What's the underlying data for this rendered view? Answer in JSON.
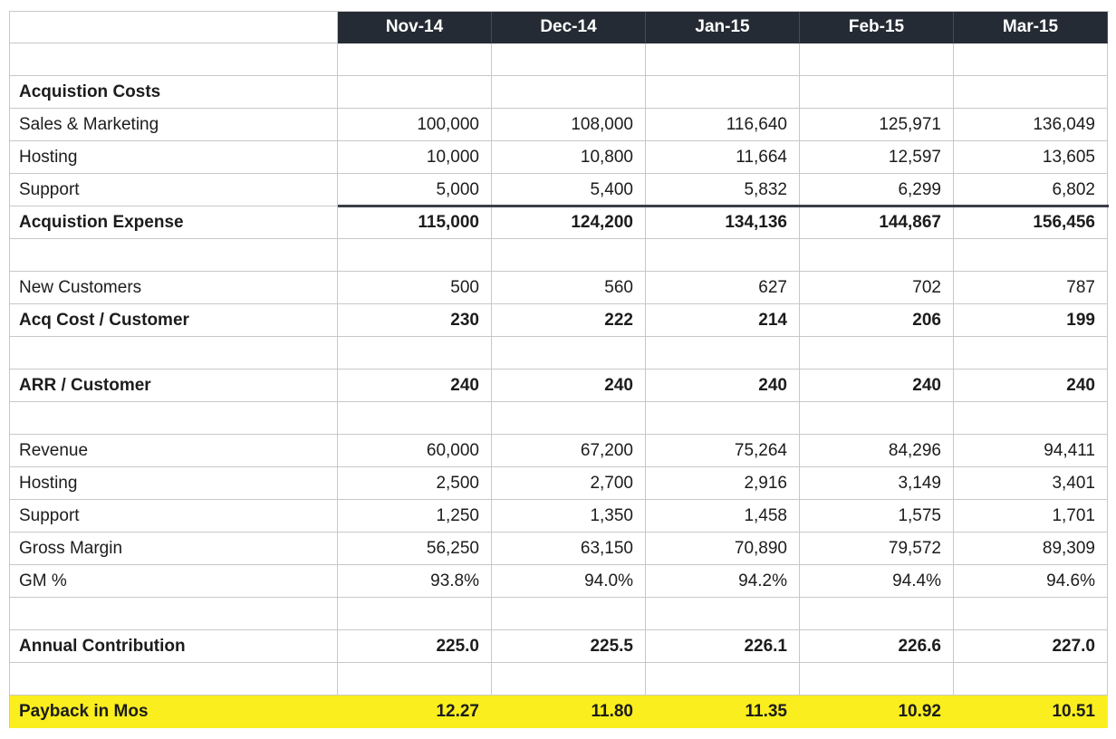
{
  "colors": {
    "header_bg": "#252B34",
    "header_text": "#FFFFFF",
    "header_divider": "#454B57",
    "gridline": "#C8C8C8",
    "text": "#1C1C1C",
    "highlight_yellow": "#FAEE1E",
    "sum_border": "#3A3F47",
    "flag_green": "#3F7D2B"
  },
  "table": {
    "corner_label": "",
    "columns": [
      "Nov-14",
      "Dec-14",
      "Jan-15",
      "Feb-15",
      "Mar-15"
    ],
    "rows": [
      {
        "label": "",
        "values": [
          "",
          "",
          "",
          "",
          ""
        ]
      },
      {
        "label": "Acquistion Costs",
        "bold": true,
        "values": [
          "",
          "",
          "",
          "",
          ""
        ]
      },
      {
        "label": "Sales & Marketing",
        "values": [
          "100,000",
          "108,000",
          "116,640",
          "125,971",
          "136,049"
        ]
      },
      {
        "label": "Hosting",
        "values": [
          "10,000",
          "10,800",
          "11,664",
          "12,597",
          "13,605"
        ]
      },
      {
        "label": "Support",
        "values": [
          "5,000",
          "5,400",
          "5,832",
          "6,299",
          "6,802"
        ]
      },
      {
        "label": "Acquistion Expense",
        "bold": true,
        "sum_border": true,
        "flag": true,
        "values": [
          "115,000",
          "124,200",
          "134,136",
          "144,867",
          "156,456"
        ]
      },
      {
        "label": "",
        "values": [
          "",
          "",
          "",
          "",
          ""
        ]
      },
      {
        "label": "New Customers",
        "values": [
          "500",
          "560",
          "627",
          "702",
          "787"
        ]
      },
      {
        "label": "Acq Cost / Customer",
        "bold": true,
        "values": [
          "230",
          "222",
          "214",
          "206",
          "199"
        ]
      },
      {
        "label": "",
        "values": [
          "",
          "",
          "",
          "",
          ""
        ]
      },
      {
        "label": "ARR / Customer",
        "bold": true,
        "values": [
          "240",
          "240",
          "240",
          "240",
          "240"
        ]
      },
      {
        "label": "",
        "values": [
          "",
          "",
          "",
          "",
          ""
        ]
      },
      {
        "label": "Revenue",
        "values": [
          "60,000",
          "67,200",
          "75,264",
          "84,296",
          "94,411"
        ]
      },
      {
        "label": "Hosting",
        "values": [
          "2,500",
          "2,700",
          "2,916",
          "3,149",
          "3,401"
        ]
      },
      {
        "label": "Support",
        "values": [
          "1,250",
          "1,350",
          "1,458",
          "1,575",
          "1,701"
        ]
      },
      {
        "label": "Gross Margin",
        "values": [
          "56,250",
          "63,150",
          "70,890",
          "79,572",
          "89,309"
        ]
      },
      {
        "label": "GM %",
        "values": [
          "93.8%",
          "94.0%",
          "94.2%",
          "94.4%",
          "94.6%"
        ]
      },
      {
        "label": "",
        "values": [
          "",
          "",
          "",
          "",
          ""
        ]
      },
      {
        "label": "Annual Contribution",
        "bold": true,
        "values": [
          "225.0",
          "225.5",
          "226.1",
          "226.6",
          "227.0"
        ]
      },
      {
        "label": "",
        "values": [
          "",
          "",
          "",
          "",
          ""
        ]
      },
      {
        "label": "Payback in Mos",
        "bold": true,
        "highlight": true,
        "values": [
          "12.27",
          "11.80",
          "11.35",
          "10.92",
          "10.51"
        ]
      }
    ]
  }
}
